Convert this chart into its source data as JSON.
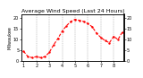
{
  "title": "Average Wind Speed (Last 24 Hours)",
  "ylabel_left": "Milwaukee",
  "x_labels": [
    "1",
    "",
    "",
    "2",
    "",
    "",
    "3",
    "",
    "",
    "4",
    "",
    "",
    "5",
    "",
    "",
    "6",
    "",
    "",
    "7",
    "",
    "",
    "8",
    "",
    ""
  ],
  "hours": [
    0,
    1,
    2,
    3,
    4,
    5,
    6,
    7,
    8,
    9,
    10,
    11,
    12,
    13,
    14,
    15,
    16,
    17,
    18,
    19,
    20,
    21,
    22,
    23
  ],
  "values": [
    4.5,
    2.0,
    1.5,
    2.0,
    1.5,
    2.0,
    4.0,
    7.5,
    10.5,
    14.0,
    16.5,
    18.5,
    19.5,
    19.0,
    18.5,
    17.5,
    16.0,
    13.0,
    11.0,
    9.5,
    8.5,
    11.5,
    10.0,
    13.5
  ],
  "line_color": "#ff0000",
  "bg_color": "#ffffff",
  "grid_color": "#888888",
  "ylim": [
    0,
    22
  ],
  "ytick_vals": [
    0,
    5,
    10,
    15,
    20
  ],
  "ytick_labels": [
    "0",
    "5",
    "10",
    "15",
    "20"
  ],
  "title_fontsize": 4.5,
  "tick_fontsize": 3.5,
  "ylabel_fontsize": 3.5,
  "line_width": 0.8,
  "marker_size": 1.5,
  "grid_positions": [
    3,
    6,
    9,
    12,
    15,
    18,
    21
  ]
}
